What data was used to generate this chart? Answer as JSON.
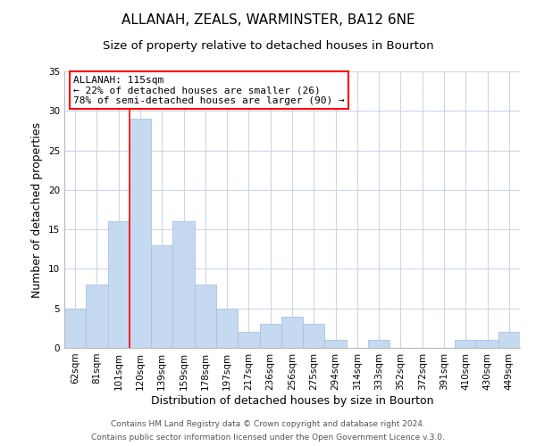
{
  "title": "ALLANAH, ZEALS, WARMINSTER, BA12 6NE",
  "subtitle": "Size of property relative to detached houses in Bourton",
  "xlabel": "Distribution of detached houses by size in Bourton",
  "ylabel": "Number of detached properties",
  "bar_color": "#c5d9f0",
  "bar_edge_color": "#a8c4e0",
  "categories": [
    "62sqm",
    "81sqm",
    "101sqm",
    "120sqm",
    "139sqm",
    "159sqm",
    "178sqm",
    "197sqm",
    "217sqm",
    "236sqm",
    "256sqm",
    "275sqm",
    "294sqm",
    "314sqm",
    "333sqm",
    "352sqm",
    "372sqm",
    "391sqm",
    "410sqm",
    "430sqm",
    "449sqm"
  ],
  "values": [
    5,
    8,
    16,
    29,
    13,
    16,
    8,
    5,
    2,
    3,
    4,
    3,
    1,
    0,
    1,
    0,
    0,
    0,
    1,
    1,
    2
  ],
  "ylim": [
    0,
    35
  ],
  "yticks": [
    0,
    5,
    10,
    15,
    20,
    25,
    30,
    35
  ],
  "property_line_x": 2.5,
  "property_line_label": "ALLANAH: 115sqm",
  "annotation_line1": "← 22% of detached houses are smaller (26)",
  "annotation_line2": "78% of semi-detached houses are larger (90) →",
  "footer1": "Contains HM Land Registry data © Crown copyright and database right 2024.",
  "footer2": "Contains public sector information licensed under the Open Government Licence v.3.0.",
  "background_color": "#ffffff",
  "grid_color": "#ccd6e8",
  "title_fontsize": 11,
  "subtitle_fontsize": 9.5,
  "axis_label_fontsize": 9,
  "tick_fontsize": 7.5,
  "annotation_fontsize": 8,
  "footer_fontsize": 6.5
}
